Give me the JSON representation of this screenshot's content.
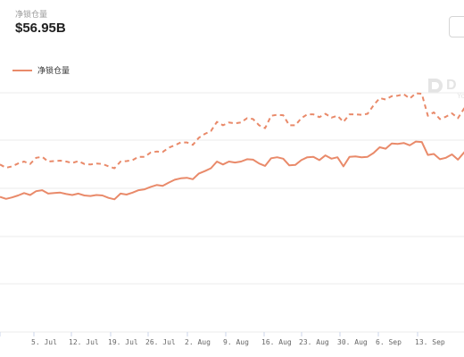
{
  "header": {
    "metric_label": "净锁仓量",
    "metric_value": "$56.95B"
  },
  "legend": {
    "label": "净锁仓量"
  },
  "watermark": {
    "text": "D",
    "subtext": "Yo"
  },
  "colors": {
    "line": "#e98a6a",
    "grid": "#ebebeb"
  },
  "chart_data": {
    "type": "line",
    "xlabel": "",
    "ylabel": "",
    "x_tick_labels": [
      "",
      "5. Jul",
      "12. Jul",
      "19. Jul",
      "26. Jul",
      "2. Aug",
      "9. Aug",
      "16. Aug",
      "23. Aug",
      "30. Aug",
      "6. Sep",
      "13. Sep"
    ],
    "grid": true,
    "series": [
      {
        "name": "净锁仓量",
        "style": "solid",
        "x": [
          0,
          1,
          2,
          3,
          4,
          5,
          6,
          7,
          8,
          9,
          10,
          11,
          12,
          13,
          14,
          15,
          16,
          17,
          18,
          19,
          20,
          21,
          22,
          23,
          24,
          25,
          26,
          27,
          28,
          29,
          30,
          31,
          32,
          33,
          34,
          35,
          36,
          37,
          38,
          39,
          40,
          41,
          42,
          43,
          44,
          45,
          46,
          47,
          48,
          49,
          50,
          51,
          52,
          53,
          54,
          55,
          56,
          57,
          58,
          59,
          60,
          61,
          62,
          63,
          64,
          65,
          66,
          67,
          68,
          69,
          70,
          71,
          72,
          73,
          74,
          75,
          76,
          77,
          78
        ],
        "values": [
          38.2,
          37.8,
          38.1,
          38.5,
          39.0,
          38.6,
          39.4,
          39.6,
          38.9,
          39.0,
          39.1,
          38.8,
          38.6,
          38.9,
          38.5,
          38.4,
          38.6,
          38.5,
          38.0,
          37.7,
          38.9,
          38.7,
          39.1,
          39.6,
          39.8,
          40.3,
          40.7,
          40.5,
          41.2,
          41.8,
          42.1,
          42.2,
          41.9,
          43.1,
          43.6,
          44.2,
          45.6,
          45.0,
          45.6,
          45.4,
          45.6,
          46.1,
          46.0,
          45.2,
          44.7,
          46.3,
          46.5,
          46.2,
          44.8,
          44.9,
          45.9,
          46.5,
          46.6,
          45.9,
          46.9,
          46.2,
          46.5,
          44.6,
          46.6,
          46.7,
          46.5,
          46.6,
          47.4,
          48.6,
          48.3,
          49.4,
          49.3,
          49.5,
          49.0,
          49.8,
          49.7,
          47.0,
          47.2,
          46.1,
          46.4,
          47.1,
          46.0,
          47.5,
          48.9
        ]
      },
      {
        "name": "",
        "style": "dashed",
        "x": [
          0,
          1,
          2,
          3,
          4,
          5,
          6,
          7,
          8,
          9,
          10,
          11,
          12,
          13,
          14,
          15,
          16,
          17,
          18,
          19,
          20,
          21,
          22,
          23,
          24,
          25,
          26,
          27,
          28,
          29,
          30,
          31,
          32,
          33,
          34,
          35,
          36,
          37,
          38,
          39,
          40,
          41,
          42,
          43,
          44,
          45,
          46,
          47,
          48,
          49,
          50,
          51,
          52,
          53,
          54,
          55,
          56,
          57,
          58,
          59,
          60,
          61,
          62,
          63,
          64,
          65,
          66,
          67,
          68,
          69,
          70,
          71,
          72,
          73,
          74,
          75,
          76,
          77,
          78
        ],
        "values": [
          45.0,
          44.3,
          44.6,
          45.2,
          45.6,
          45.1,
          46.4,
          46.6,
          45.6,
          45.7,
          45.8,
          45.6,
          45.3,
          45.7,
          45.1,
          45.0,
          45.2,
          45.1,
          44.6,
          44.2,
          45.6,
          45.7,
          45.9,
          46.6,
          46.6,
          47.5,
          47.7,
          47.6,
          48.5,
          49.0,
          49.6,
          49.6,
          49.1,
          50.6,
          51.4,
          52.0,
          53.9,
          53.2,
          53.8,
          53.6,
          53.8,
          54.7,
          54.5,
          53.2,
          52.6,
          55.2,
          55.4,
          55.3,
          53.2,
          53.2,
          54.7,
          55.5,
          55.5,
          54.9,
          55.6,
          54.8,
          55.2,
          53.9,
          55.5,
          55.5,
          55.4,
          55.6,
          57.4,
          58.9,
          58.6,
          59.3,
          59.4,
          59.7,
          58.8,
          59.9,
          59.8,
          55.2,
          55.9,
          54.5,
          55.0,
          55.7,
          54.7,
          56.7,
          58.2
        ]
      }
    ]
  }
}
